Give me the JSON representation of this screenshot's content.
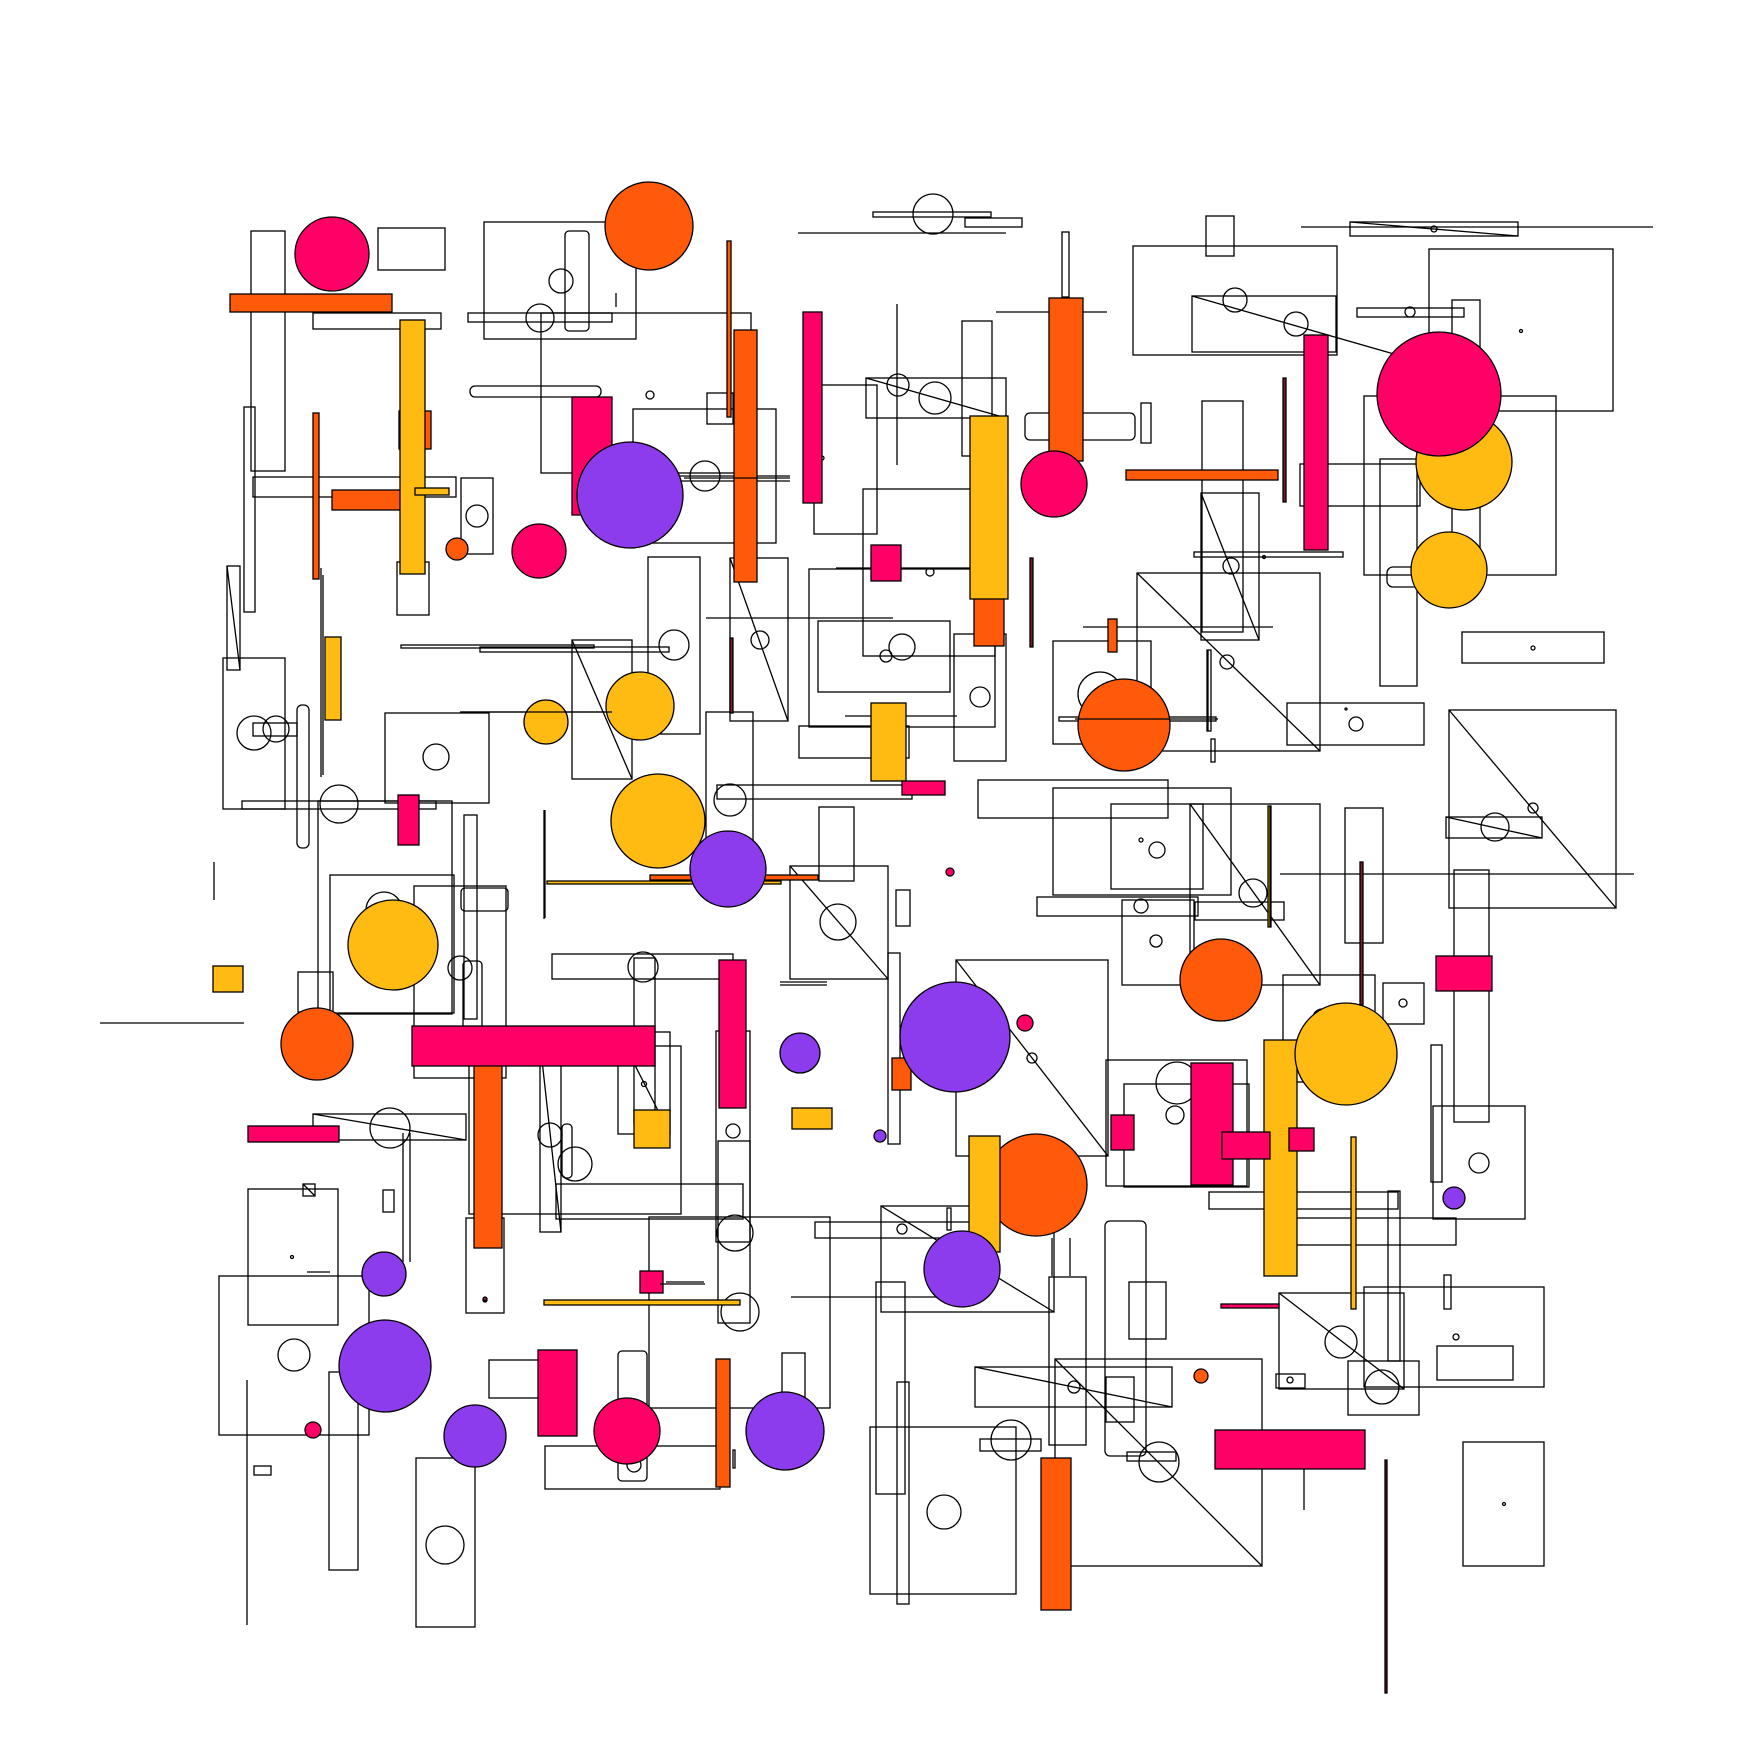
{
  "artwork": {
    "background": "#ffffff",
    "stroke": "#000000",
    "palette": {
      "magenta": "#ff0066",
      "orange": "#ff5a0a",
      "yellow": "#ffbb11",
      "purple": "#8c3cec",
      "maroon": "#7a1f2a"
    }
  }
}
